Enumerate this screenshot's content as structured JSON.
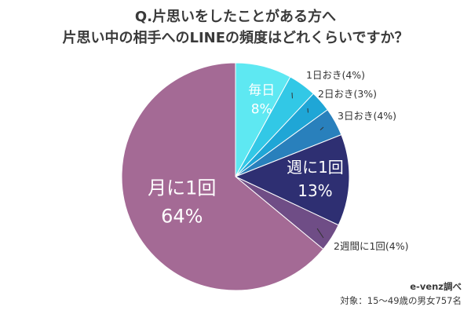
{
  "chart_data": {
    "type": "pie",
    "title": "Q.片思いをしたことがある方へ",
    "subtitle": "片思い中の相手へのLINEの頻度はどれくらいですか？",
    "slices": [
      {
        "label": "毎日",
        "value_text": "8%",
        "value": 8,
        "color": "#5ee8f2",
        "label_style": "inside-light"
      },
      {
        "label": "1日おき(4%)",
        "value": 4,
        "color": "#32c8e6",
        "label_style": "outside"
      },
      {
        "label": "2日おき(3%)",
        "value": 3,
        "color": "#1fa6d6",
        "label_style": "outside"
      },
      {
        "label": "3日おき(4%)",
        "value": 4,
        "color": "#2980bc",
        "label_style": "outside"
      },
      {
        "label": "週に1回",
        "value_text": "13%",
        "value": 13,
        "color": "#2e2f72",
        "label_style": "inside-light"
      },
      {
        "label": "2週間に1回(4%)",
        "value": 4,
        "color": "#6f4d86",
        "label_style": "outside"
      },
      {
        "label": "月に1回",
        "value_text": "64%",
        "value": 64,
        "color": "#a46a95",
        "label_style": "inside-large"
      }
    ]
  },
  "source": {
    "by": "e-venz調べ",
    "target": "対象：15〜49歳の男女757名"
  }
}
